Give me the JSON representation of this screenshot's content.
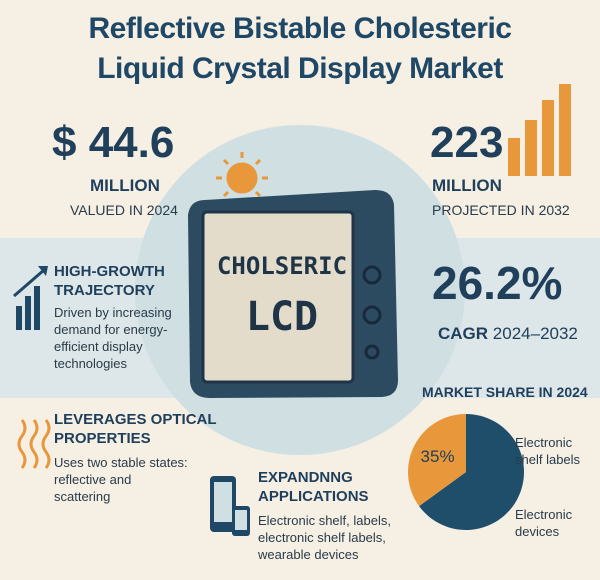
{
  "title": [
    "Reflective Bistable Cholesteric",
    "Liquid Crystal Display Market"
  ],
  "valued": {
    "amount": "$ 44.6",
    "unit": "MILLION",
    "note": "VALUED IN 2024"
  },
  "projected": {
    "amount": "223",
    "unit": "MILLION",
    "note": "PROJECTED IN 2032"
  },
  "cagr": {
    "value": "26.2%",
    "label": "CAGR",
    "period": "2024–2032"
  },
  "screen": [
    "CHOLSERIC",
    "LCD"
  ],
  "sections": [
    {
      "title": "HIGH-GROWTH TRAJECTORY",
      "body": "Driven by increasing demand for energy-efficient display technologies"
    },
    {
      "title": "LEVERAGES OPTICAL PROPERTIES",
      "body": "Uses two stable states: reflective and scattering"
    },
    {
      "title": "EXPANDNNG APPLICATIONS",
      "body": "Electronic shelf, labels, electronic shelf labels, wearable devices"
    }
  ],
  "chart_data": {
    "type": "pie",
    "title": "MARKET SHARE IN 2024",
    "categories": [
      "Electronic shelf labels",
      "Electronic devices"
    ],
    "values": [
      65,
      35
    ],
    "value_labels": [
      null,
      "35%"
    ],
    "colors": [
      "#1f4e6b",
      "#e8973a"
    ]
  }
}
